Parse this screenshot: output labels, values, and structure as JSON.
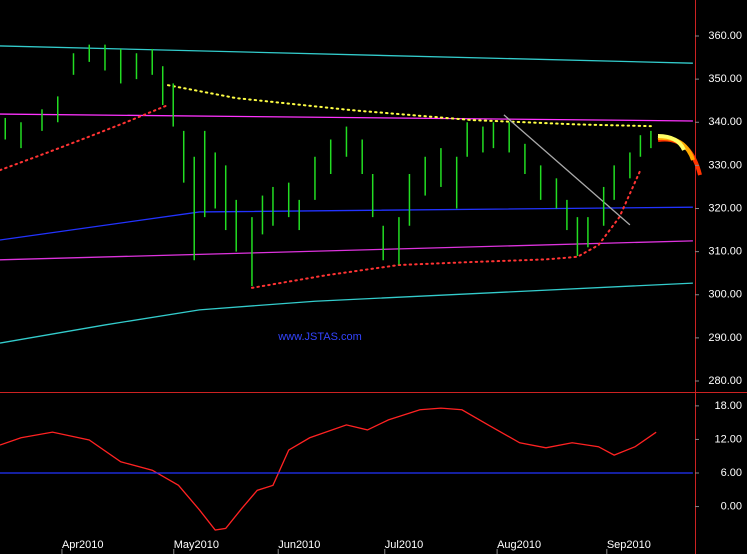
{
  "chart_data": [
    {
      "type": "ohlc",
      "watermark": "www.JSTAS.com",
      "bars": {
        "name": "price",
        "color": "#22dd22",
        "x": [
          1,
          4,
          8,
          11,
          14,
          17,
          20,
          23,
          26,
          29,
          31,
          33,
          35,
          37,
          39,
          41,
          43,
          45,
          48,
          50,
          52,
          55,
          57,
          60,
          63,
          66,
          69,
          71,
          73,
          76,
          78,
          81,
          84,
          87,
          89,
          92,
          94,
          97,
          100,
          103,
          106,
          108,
          110,
          112,
          115,
          117,
          120,
          122,
          124
        ],
        "high": [
          341,
          340,
          343,
          346,
          356,
          358,
          358,
          357,
          356,
          357,
          353,
          349,
          338,
          332,
          338,
          333,
          330,
          322,
          318,
          323,
          325,
          326,
          322,
          332,
          336,
          339,
          336,
          328,
          316,
          318,
          328,
          332,
          334,
          332,
          340,
          339,
          340,
          340,
          335,
          330,
          327,
          322,
          318,
          318,
          325,
          330,
          333,
          337,
          338
        ],
        "low": [
          336,
          334,
          338,
          340,
          351,
          354,
          352,
          349,
          350,
          351,
          344,
          339,
          326,
          308,
          318,
          320,
          315,
          310,
          302,
          314,
          316,
          318,
          315,
          322,
          328,
          332,
          328,
          318,
          308,
          307,
          316,
          323,
          325,
          320,
          332,
          333,
          334,
          333,
          328,
          322,
          320,
          315,
          309,
          311,
          316,
          322,
          327,
          332,
          334
        ]
      },
      "series": [
        {
          "name": "upper-band",
          "color": "#33cccc",
          "style": "solid",
          "x": [
            0,
            132
          ],
          "values": [
            357.7,
            353.7
          ]
        },
        {
          "name": "resistance",
          "color": "#ff33ff",
          "style": "solid",
          "x": [
            0,
            132
          ],
          "values": [
            341.9,
            340.3
          ]
        },
        {
          "name": "mid-average",
          "color": "#2233ff",
          "style": "solid",
          "x": [
            0,
            38,
            132
          ],
          "values": [
            312.7,
            319.2,
            320.3
          ]
        },
        {
          "name": "support",
          "color": "#dd33dd",
          "style": "solid",
          "x": [
            0,
            132
          ],
          "values": [
            308.1,
            312.5
          ]
        },
        {
          "name": "lower-band",
          "color": "#33cccc",
          "style": "solid",
          "x": [
            0,
            20,
            38,
            60,
            132
          ],
          "values": [
            288.8,
            293,
            296.5,
            298.5,
            302.7
          ]
        },
        {
          "name": "sar-high",
          "color": "#ffff44",
          "style": "dots",
          "x": [
            32,
            45,
            67,
            90,
            110,
            124
          ],
          "values": [
            348.6,
            345.6,
            342.8,
            340.5,
            339.5,
            339.1
          ]
        },
        {
          "name": "sar-low-1",
          "color": "#ff3333",
          "style": "dots",
          "x": [
            0,
            8,
            16,
            24,
            32
          ],
          "values": [
            328.9,
            332.5,
            336.2,
            340,
            344
          ]
        },
        {
          "name": "sar-low-2",
          "color": "#ff3333",
          "style": "dots",
          "x": [
            48,
            62,
            76,
            90,
            104,
            110,
            114,
            118,
            122
          ],
          "values": [
            301.6,
            304.5,
            306.9,
            307.6,
            308.2,
            308.8,
            311.5,
            318,
            328.9
          ]
        },
        {
          "name": "trendline",
          "color": "#aaaaaa",
          "style": "solid",
          "x": [
            96,
            120
          ],
          "values": [
            341.7,
            316.2
          ]
        }
      ],
      "xlim": [
        0,
        132.4
      ],
      "ylim": [
        277.45,
        368.35
      ],
      "yticks": [
        {
          "value": 280,
          "label": "280.00"
        },
        {
          "value": 290,
          "label": "290.00"
        },
        {
          "value": 300,
          "label": "300.00"
        },
        {
          "value": 310,
          "label": "310.00"
        },
        {
          "value": 320,
          "label": "320.00"
        },
        {
          "value": 330,
          "label": "330.00"
        },
        {
          "value": 340,
          "label": "340.00"
        },
        {
          "value": 350,
          "label": "350.00"
        },
        {
          "value": 360,
          "label": "360.00"
        }
      ]
    },
    {
      "type": "line",
      "series": [
        {
          "name": "oscillator",
          "color": "#ff2222",
          "style": "solid",
          "x": [
            0,
            4,
            10,
            17,
            23,
            29,
            34,
            38,
            41,
            43,
            46,
            49,
            52,
            55,
            59,
            66,
            70,
            74,
            80,
            84,
            88,
            93,
            99,
            104,
            109,
            114,
            117,
            121,
            125
          ],
          "values": [
            11,
            12.3,
            13.3,
            11.9,
            8,
            6.5,
            3.8,
            -0.6,
            -4.2,
            -3.9,
            -0.4,
            2.9,
            3.8,
            10.1,
            12.3,
            14.6,
            13.7,
            15.5,
            17.3,
            17.6,
            17.3,
            14.6,
            11.4,
            10.5,
            11.4,
            10.7,
            9.2,
            10.7,
            13.3
          ]
        },
        {
          "name": "signal",
          "color": "#2233ff",
          "style": "solid",
          "x": [
            0,
            132
          ],
          "values": [
            6,
            6
          ]
        }
      ],
      "xlim": [
        0,
        132.4
      ],
      "ylim": [
        -8.3,
        20.3
      ],
      "yticks": [
        {
          "value": 0,
          "label": "0.00"
        },
        {
          "value": 6,
          "label": "6.00"
        },
        {
          "value": 12,
          "label": "12.00"
        },
        {
          "value": 18,
          "label": "18.00"
        }
      ],
      "xticks": [
        {
          "value": 11.8,
          "label": "Apr2010"
        },
        {
          "value": 33.1,
          "label": "May2010"
        },
        {
          "value": 53,
          "label": "Jun2010"
        },
        {
          "value": 73.3,
          "label": "Jul2010"
        },
        {
          "value": 94.7,
          "label": "Aug2010"
        },
        {
          "value": 115.6,
          "label": "Sep2010"
        }
      ]
    }
  ]
}
